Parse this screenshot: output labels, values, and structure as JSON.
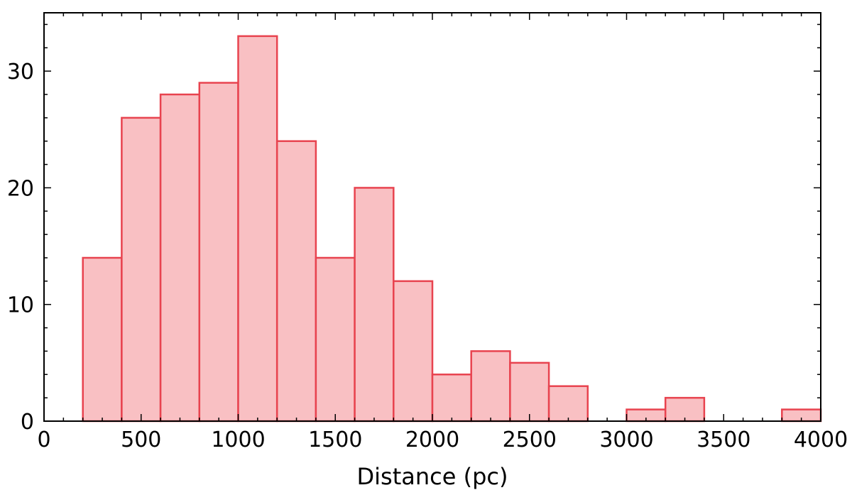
{
  "chart_data": {
    "type": "bar",
    "title": "",
    "xlabel": "Distance (pc)",
    "ylabel": "",
    "xlim": [
      0,
      4000
    ],
    "ylim": [
      0,
      35
    ],
    "x_ticks": [
      0,
      500,
      1000,
      1500,
      2000,
      2500,
      3000,
      3500,
      4000
    ],
    "y_ticks": [
      0,
      10,
      20,
      30
    ],
    "bin_width": 200,
    "bins": [
      {
        "x0": 200,
        "x1": 400,
        "count": 14
      },
      {
        "x0": 400,
        "x1": 600,
        "count": 26
      },
      {
        "x0": 600,
        "x1": 800,
        "count": 28
      },
      {
        "x0": 800,
        "x1": 1000,
        "count": 29
      },
      {
        "x0": 1000,
        "x1": 1200,
        "count": 33
      },
      {
        "x0": 1200,
        "x1": 1400,
        "count": 24
      },
      {
        "x0": 1400,
        "x1": 1600,
        "count": 14
      },
      {
        "x0": 1600,
        "x1": 1800,
        "count": 20
      },
      {
        "x0": 1800,
        "x1": 2000,
        "count": 12
      },
      {
        "x0": 2000,
        "x1": 2200,
        "count": 4
      },
      {
        "x0": 2200,
        "x1": 2400,
        "count": 6
      },
      {
        "x0": 2400,
        "x1": 2600,
        "count": 5
      },
      {
        "x0": 2600,
        "x1": 2800,
        "count": 3
      },
      {
        "x0": 2800,
        "x1": 3000,
        "count": 0
      },
      {
        "x0": 3000,
        "x1": 3200,
        "count": 1
      },
      {
        "x0": 3200,
        "x1": 3400,
        "count": 2
      },
      {
        "x0": 3400,
        "x1": 3600,
        "count": 0
      },
      {
        "x0": 3600,
        "x1": 3800,
        "count": 0
      },
      {
        "x0": 3800,
        "x1": 4000,
        "count": 1
      }
    ],
    "grid": false,
    "bar_fill": "#f9c0c3",
    "bar_edge": "#e8434f"
  }
}
